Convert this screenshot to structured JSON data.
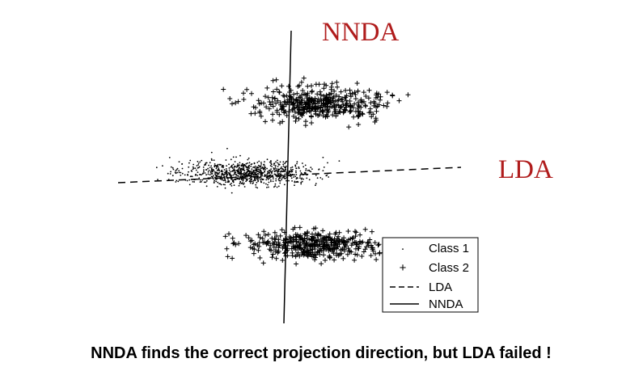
{
  "diagram": {
    "labels": {
      "nnda": "NNDA",
      "lda": "LDA"
    },
    "legend": {
      "class1_symbol": "·",
      "class1": "Class 1",
      "class2_symbol": "+",
      "class2": "Class 2",
      "lda": "LDA",
      "nnda": "NNDA"
    },
    "caption": "NNDA finds the correct projection direction, but LDA failed !"
  }
}
